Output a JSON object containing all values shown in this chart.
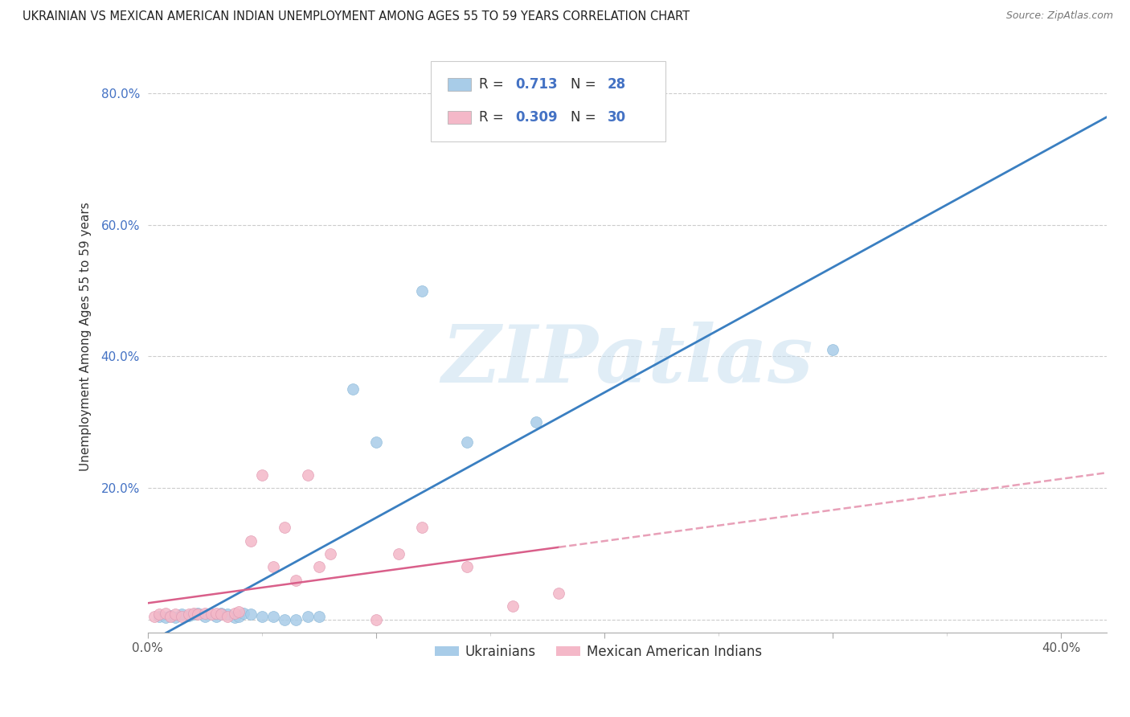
{
  "title": "UKRAINIAN VS MEXICAN AMERICAN INDIAN UNEMPLOYMENT AMONG AGES 55 TO 59 YEARS CORRELATION CHART",
  "source": "Source: ZipAtlas.com",
  "ylabel": "Unemployment Among Ages 55 to 59 years",
  "watermark": "ZIPatlas",
  "xlim": [
    0.0,
    0.42
  ],
  "ylim": [
    -0.02,
    0.88
  ],
  "yticks": [
    0.0,
    0.2,
    0.4,
    0.6,
    0.8
  ],
  "ytick_labels": [
    "",
    "20.0%",
    "40.0%",
    "60.0%",
    "80.0%"
  ],
  "xtick_labels_ends": [
    "0.0%",
    "40.0%"
  ],
  "blue_color": "#a8cce8",
  "pink_color": "#f4b8c8",
  "blue_line_color": "#3a7fc1",
  "pink_line_color": "#d95f8a",
  "pink_dashed_color": "#e8a0b8",
  "R_blue": 0.713,
  "N_blue": 28,
  "R_pink": 0.309,
  "N_pink": 30,
  "blue_scatter_x": [
    0.005,
    0.008,
    0.01,
    0.012,
    0.015,
    0.018,
    0.02,
    0.022,
    0.025,
    0.03,
    0.032,
    0.035,
    0.038,
    0.04,
    0.042,
    0.045,
    0.05,
    0.055,
    0.06,
    0.065,
    0.07,
    0.075,
    0.09,
    0.1,
    0.12,
    0.14,
    0.17,
    0.3
  ],
  "blue_scatter_y": [
    0.005,
    0.003,
    0.006,
    0.004,
    0.008,
    0.006,
    0.008,
    0.01,
    0.005,
    0.005,
    0.01,
    0.008,
    0.003,
    0.005,
    0.01,
    0.008,
    0.005,
    0.005,
    0.0,
    0.0,
    0.005,
    0.005,
    0.35,
    0.27,
    0.5,
    0.27,
    0.3,
    0.41
  ],
  "pink_scatter_x": [
    0.003,
    0.005,
    0.008,
    0.01,
    0.012,
    0.015,
    0.018,
    0.02,
    0.022,
    0.025,
    0.028,
    0.03,
    0.032,
    0.035,
    0.038,
    0.04,
    0.045,
    0.05,
    0.055,
    0.06,
    0.065,
    0.07,
    0.075,
    0.08,
    0.1,
    0.11,
    0.12,
    0.14,
    0.16,
    0.18
  ],
  "pink_scatter_y": [
    0.005,
    0.008,
    0.01,
    0.005,
    0.008,
    0.005,
    0.008,
    0.01,
    0.008,
    0.01,
    0.008,
    0.01,
    0.008,
    0.005,
    0.01,
    0.012,
    0.12,
    0.22,
    0.08,
    0.14,
    0.06,
    0.22,
    0.08,
    0.1,
    0.0,
    0.1,
    0.14,
    0.08,
    0.02,
    0.04
  ],
  "grid_color": "#cccccc",
  "background_color": "#ffffff",
  "title_fontsize": 10.5,
  "axis_label_fontsize": 11,
  "tick_fontsize": 11,
  "legend_fontsize": 12,
  "source_fontsize": 9
}
